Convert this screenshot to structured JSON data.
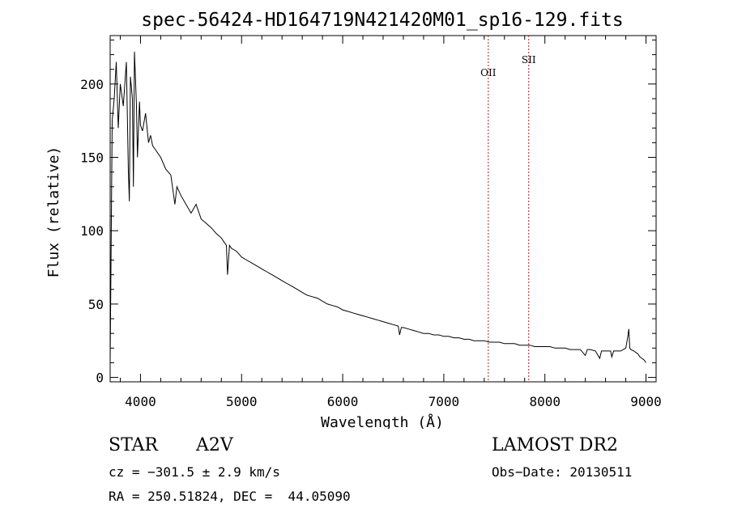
{
  "chart_data": {
    "type": "line",
    "title": "spec-56424-HD164719N421420M01_sp16-129.fits",
    "xlabel": "Wavelength (Å)",
    "ylabel": "Flux (relative)",
    "xlim": [
      3700,
      9100
    ],
    "ylim": [
      -3,
      233
    ],
    "xticks": [
      4000,
      5000,
      6000,
      7000,
      8000,
      9000
    ],
    "yticks": [
      0,
      50,
      100,
      150,
      200
    ],
    "grid": false,
    "series": [
      {
        "color": "#000000",
        "x": [
          3700,
          3720,
          3740,
          3760,
          3780,
          3800,
          3830,
          3860,
          3880,
          3890,
          3900,
          3920,
          3930,
          3940,
          3960,
          3970,
          3990,
          4000,
          4020,
          4050,
          4080,
          4100,
          4120,
          4150,
          4200,
          4250,
          4300,
          4340,
          4360,
          4400,
          4450,
          4500,
          4550,
          4600,
          4650,
          4700,
          4750,
          4800,
          4850,
          4861,
          4880,
          4900,
          4950,
          5000,
          5050,
          5100,
          5150,
          5200,
          5250,
          5300,
          5350,
          5400,
          5450,
          5500,
          5550,
          5600,
          5650,
          5700,
          5750,
          5800,
          5850,
          5900,
          5950,
          6000,
          6050,
          6100,
          6150,
          6200,
          6250,
          6300,
          6350,
          6400,
          6450,
          6500,
          6550,
          6563,
          6580,
          6600,
          6650,
          6700,
          6750,
          6800,
          6850,
          6900,
          6950,
          7000,
          7050,
          7100,
          7150,
          7200,
          7250,
          7300,
          7350,
          7400,
          7450,
          7500,
          7550,
          7600,
          7650,
          7700,
          7750,
          7800,
          7850,
          7900,
          7950,
          8000,
          8050,
          8100,
          8150,
          8200,
          8250,
          8300,
          8350,
          8400,
          8420,
          8450,
          8500,
          8542,
          8560,
          8600,
          8650,
          8662,
          8680,
          8700,
          8750,
          8800,
          8820,
          8830,
          8840,
          8850,
          8880,
          8900,
          8920,
          8940,
          8960,
          8980,
          9000
        ],
        "y": [
          10,
          175,
          190,
          215,
          170,
          200,
          185,
          215,
          140,
          120,
          205,
          190,
          130,
          222,
          185,
          150,
          188,
          172,
          168,
          180,
          160,
          165,
          158,
          155,
          150,
          142,
          138,
          118,
          130,
          124,
          118,
          112,
          118,
          108,
          105,
          102,
          98,
          95,
          90,
          70,
          90,
          88,
          86,
          82,
          80,
          78,
          76,
          74,
          72,
          70,
          68,
          66,
          64,
          62,
          60,
          58,
          56,
          55,
          54,
          52,
          50,
          49,
          48,
          46,
          45,
          44,
          43,
          42,
          41,
          40,
          39,
          38,
          37,
          36,
          35,
          29,
          34,
          34,
          33,
          32,
          31,
          30,
          30,
          29,
          29,
          28,
          28,
          27,
          27,
          26,
          26,
          25,
          25,
          25,
          24,
          24,
          24,
          23,
          23,
          23,
          22,
          22,
          22,
          21,
          21,
          21,
          21,
          20,
          20,
          20,
          19,
          19,
          19,
          15,
          19,
          19,
          18,
          13,
          18,
          18,
          18,
          14,
          18,
          18,
          18,
          20,
          28,
          33,
          20,
          19,
          18,
          17,
          16,
          14,
          13,
          12,
          10
        ]
      }
    ],
    "annotations": [
      {
        "label": "OII",
        "x": 7440
      },
      {
        "label": "SII",
        "x": 7840
      }
    ]
  },
  "info": {
    "object_class": "STAR",
    "subclass": "A2V",
    "survey": "LAMOST DR2",
    "cz": "cz = −301.5 ± 2.9 km/s",
    "obs_date": "Obs−Date: 20130511",
    "coords": "RA = 250.51824, DEC =  44.05090"
  }
}
